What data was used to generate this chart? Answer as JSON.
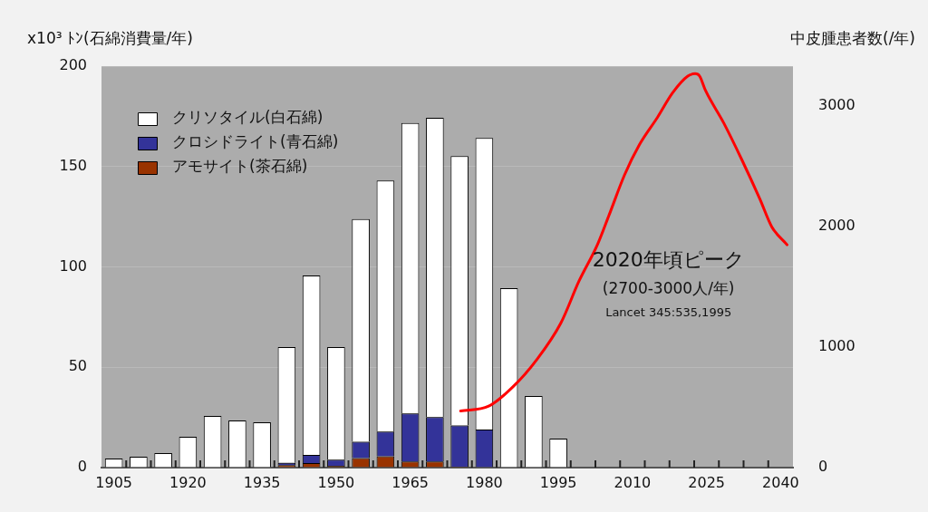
{
  "chart_data": {
    "type": "bar",
    "stacked": true,
    "ylabel": "x10³ ﾄﾝ(石綿消費量/年)",
    "y2label": "中皮腫患者数(/年)",
    "x": [
      1905,
      1910,
      1915,
      1920,
      1925,
      1930,
      1935,
      1940,
      1945,
      1950,
      1955,
      1960,
      1965,
      1970,
      1975,
      1980,
      1985,
      1990,
      1995
    ],
    "series": [
      {
        "name": "アモサイト(茶石綿)",
        "color": "#993300",
        "values": [
          null,
          null,
          null,
          null,
          null,
          null,
          null,
          1.2,
          2.3,
          0.9,
          4.7,
          5.7,
          3,
          3,
          0.5,
          null,
          null,
          null,
          null
        ]
      },
      {
        "name": "クロシドライト(青石綿)",
        "color": "#333399",
        "values": [
          null,
          null,
          null,
          null,
          null,
          null,
          null,
          1.2,
          4,
          3,
          8.2,
          12.3,
          24,
          22.2,
          20.5,
          19,
          null,
          null,
          null
        ]
      },
      {
        "name": "クリソタイル(白石綿)",
        "color": "#ffffff",
        "values": [
          4.5,
          5.4,
          7.2,
          15.3,
          25.7,
          23.5,
          22.6,
          57.6,
          89.4,
          56.1,
          110.9,
          125,
          144.7,
          149.1,
          134.2,
          145.2,
          89.4,
          35.7,
          14.4
        ]
      },
      {
        "type": "line",
        "axis": "y2",
        "color": "#ff0000",
        "marker": "none",
        "line_style": "solid",
        "x": [
          1975.2,
          1980.9,
          1985.8,
          1990.7,
          1995.5,
          1999.2,
          2002.9,
          2005.3,
          2008.4,
          2011.4,
          2015.1,
          2018.1,
          2021.2,
          2022.7,
          2023.6,
          2024.8,
          2028.5,
          2032.1,
          2035.8,
          2038.2,
          2041.3
        ],
        "values": [
          470,
          510,
          670,
          900,
          1200,
          1550,
          1850,
          2100,
          2430,
          2680,
          2910,
          3110,
          3250,
          3270,
          3250,
          3130,
          2860,
          2560,
          2230,
          2000,
          1850
        ]
      }
    ],
    "xlim": [
      1902.5,
      2042.5
    ],
    "xticks": [
      1905,
      1920,
      1935,
      1950,
      1965,
      1980,
      1995,
      2010,
      2025,
      2040,
      {
        "value": 1907.5,
        "label": null
      },
      {
        "value": 1912.5,
        "label": null
      },
      {
        "value": 1917.5,
        "label": null
      },
      {
        "value": 1922.5,
        "label": null
      },
      {
        "value": 1927.5,
        "label": null
      },
      {
        "value": 1932.5,
        "label": null
      },
      {
        "value": 1937.5,
        "label": null
      },
      {
        "value": 1942.5,
        "label": null
      },
      {
        "value": 1947.5,
        "label": null
      },
      {
        "value": 1952.5,
        "label": null
      },
      {
        "value": 1957.5,
        "label": null
      },
      {
        "value": 1962.5,
        "label": null
      },
      {
        "value": 1967.5,
        "label": null
      },
      {
        "value": 1972.5,
        "label": null
      },
      {
        "value": 1977.5,
        "label": null
      },
      {
        "value": 1982.5,
        "label": null
      },
      {
        "value": 1987.5,
        "label": null
      },
      {
        "value": 1992.5,
        "label": null
      },
      {
        "value": 1997.5,
        "label": null
      },
      {
        "value": 2002.5,
        "label": null
      },
      {
        "value": 2007.5,
        "label": null
      },
      {
        "value": 2012.5,
        "label": null
      },
      {
        "value": 2017.5,
        "label": null
      },
      {
        "value": 2022.5,
        "label": null
      },
      {
        "value": 2027.5,
        "label": null
      },
      {
        "value": 2032.5,
        "label": null
      },
      {
        "value": 2037.5,
        "label": null
      }
    ],
    "ylim": [
      0,
      200
    ],
    "yticks": [
      0,
      50,
      100,
      150,
      200
    ],
    "y2lim": [
      0,
      3333
    ],
    "y2ticks": [
      0,
      1000,
      2000,
      3000
    ],
    "grid": "y",
    "legend": "top left",
    "annotations": [
      "2020年頃ピーク",
      "(2700-3000人/年)",
      "Lancet 345:535,1995"
    ]
  }
}
